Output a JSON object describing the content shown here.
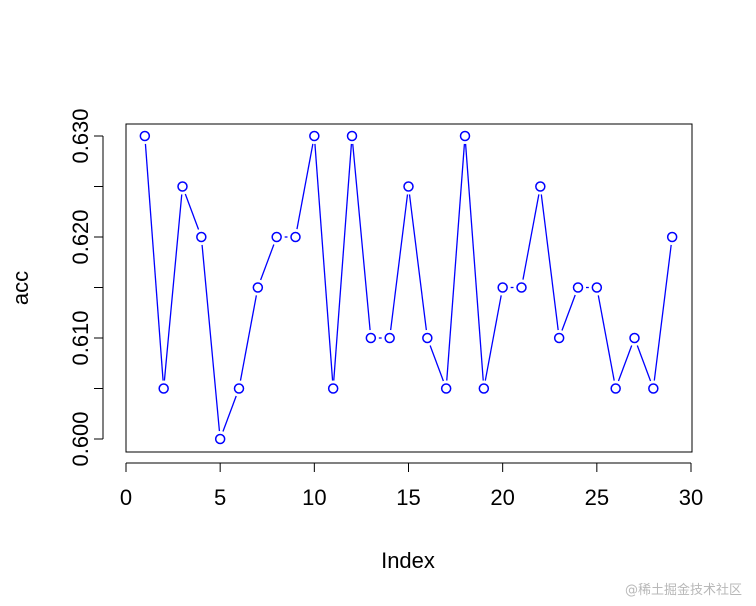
{
  "watermark": "@稀土掘金技术社区",
  "chart_data": {
    "type": "line",
    "title": "",
    "xlabel": "Index",
    "ylabel": "acc",
    "xlim": [
      0,
      30
    ],
    "ylim": [
      0.6,
      0.63
    ],
    "xticks": [
      0,
      5,
      10,
      15,
      20,
      25,
      30
    ],
    "xtick_labels": [
      "0",
      "5",
      "10",
      "15",
      "20",
      "25",
      "30"
    ],
    "yticks": [
      0.6,
      0.605,
      0.61,
      0.615,
      0.62,
      0.625,
      0.63
    ],
    "ytick_labels": [
      "0.600",
      "",
      "0.610",
      "",
      "0.620",
      "",
      "0.630"
    ],
    "grid": false,
    "line_color": "#0000ff",
    "series": [
      {
        "x": [
          1,
          2,
          3,
          4,
          5,
          6,
          7,
          8,
          9,
          10,
          11,
          12,
          13,
          14,
          15,
          16,
          17,
          18,
          19,
          20,
          21,
          22,
          23,
          24,
          25,
          26,
          27,
          28,
          29
        ],
        "values": [
          0.63,
          0.605,
          0.625,
          0.62,
          0.6,
          0.605,
          0.615,
          0.62,
          0.62,
          0.63,
          0.605,
          0.63,
          0.61,
          0.61,
          0.625,
          0.61,
          0.605,
          0.63,
          0.605,
          0.615,
          0.615,
          0.625,
          0.61,
          0.615,
          0.615,
          0.605,
          0.61,
          0.605,
          0.62
        ]
      }
    ]
  }
}
